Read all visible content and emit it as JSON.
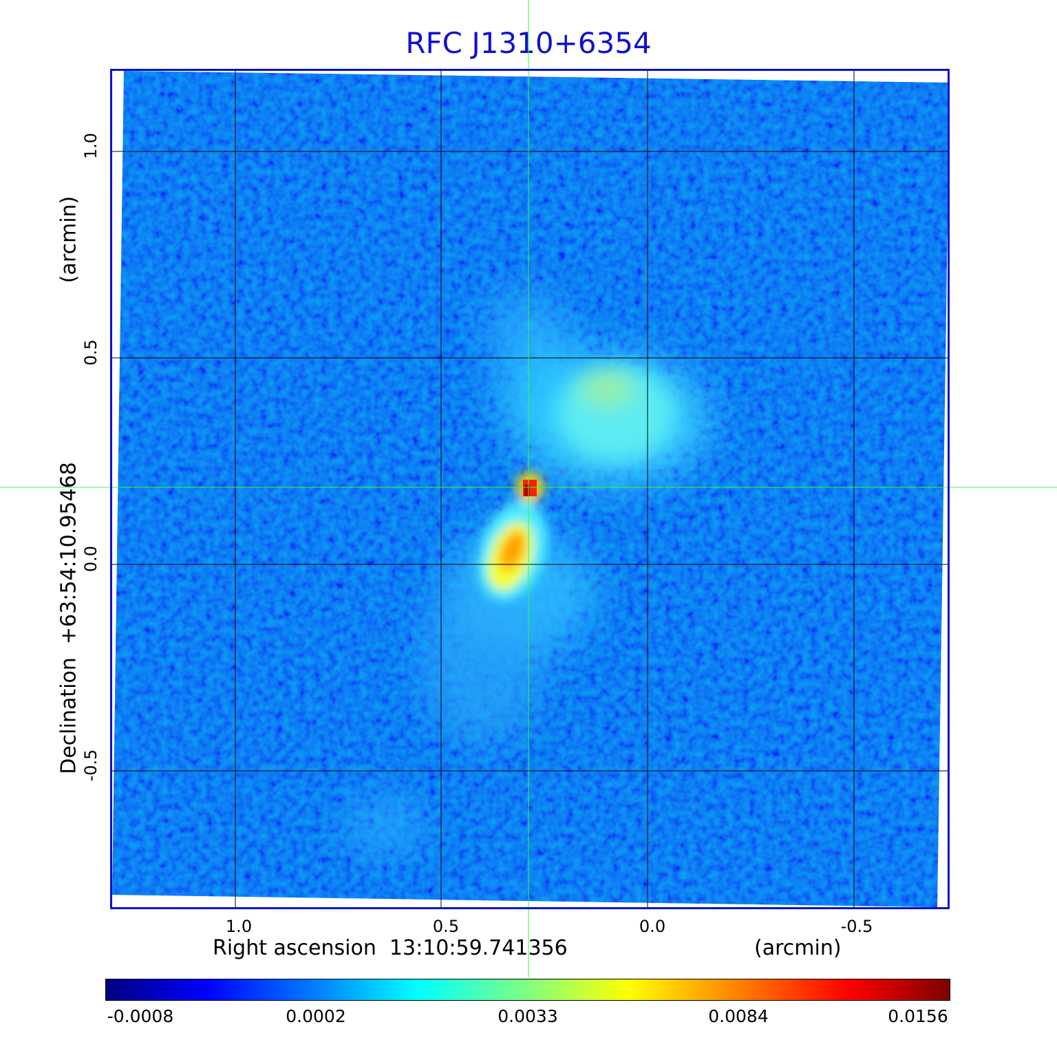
{
  "title": "RFC J1310+6354",
  "x_axis": {
    "label": "Right ascension  13:10:59.741356",
    "unit": "(arcmin)",
    "ticks": [
      "1.0",
      "0.5",
      "0.0",
      "-0.5"
    ]
  },
  "y_axis": {
    "label": "Declination  +63:54:10.95468",
    "unit": "(arcmin)",
    "ticks": [
      "1.0",
      "0.5",
      "0.0",
      "-0.5"
    ]
  },
  "colorbar": {
    "colormap": "jet",
    "ticks": [
      "-0.0008",
      "0.0002",
      "0.0033",
      "0.0084",
      "0.0156"
    ]
  },
  "colors": {
    "title": "#1010d0",
    "frame": "#0a14c8",
    "crosshair": "#33ff33",
    "grid": "#000000"
  }
}
